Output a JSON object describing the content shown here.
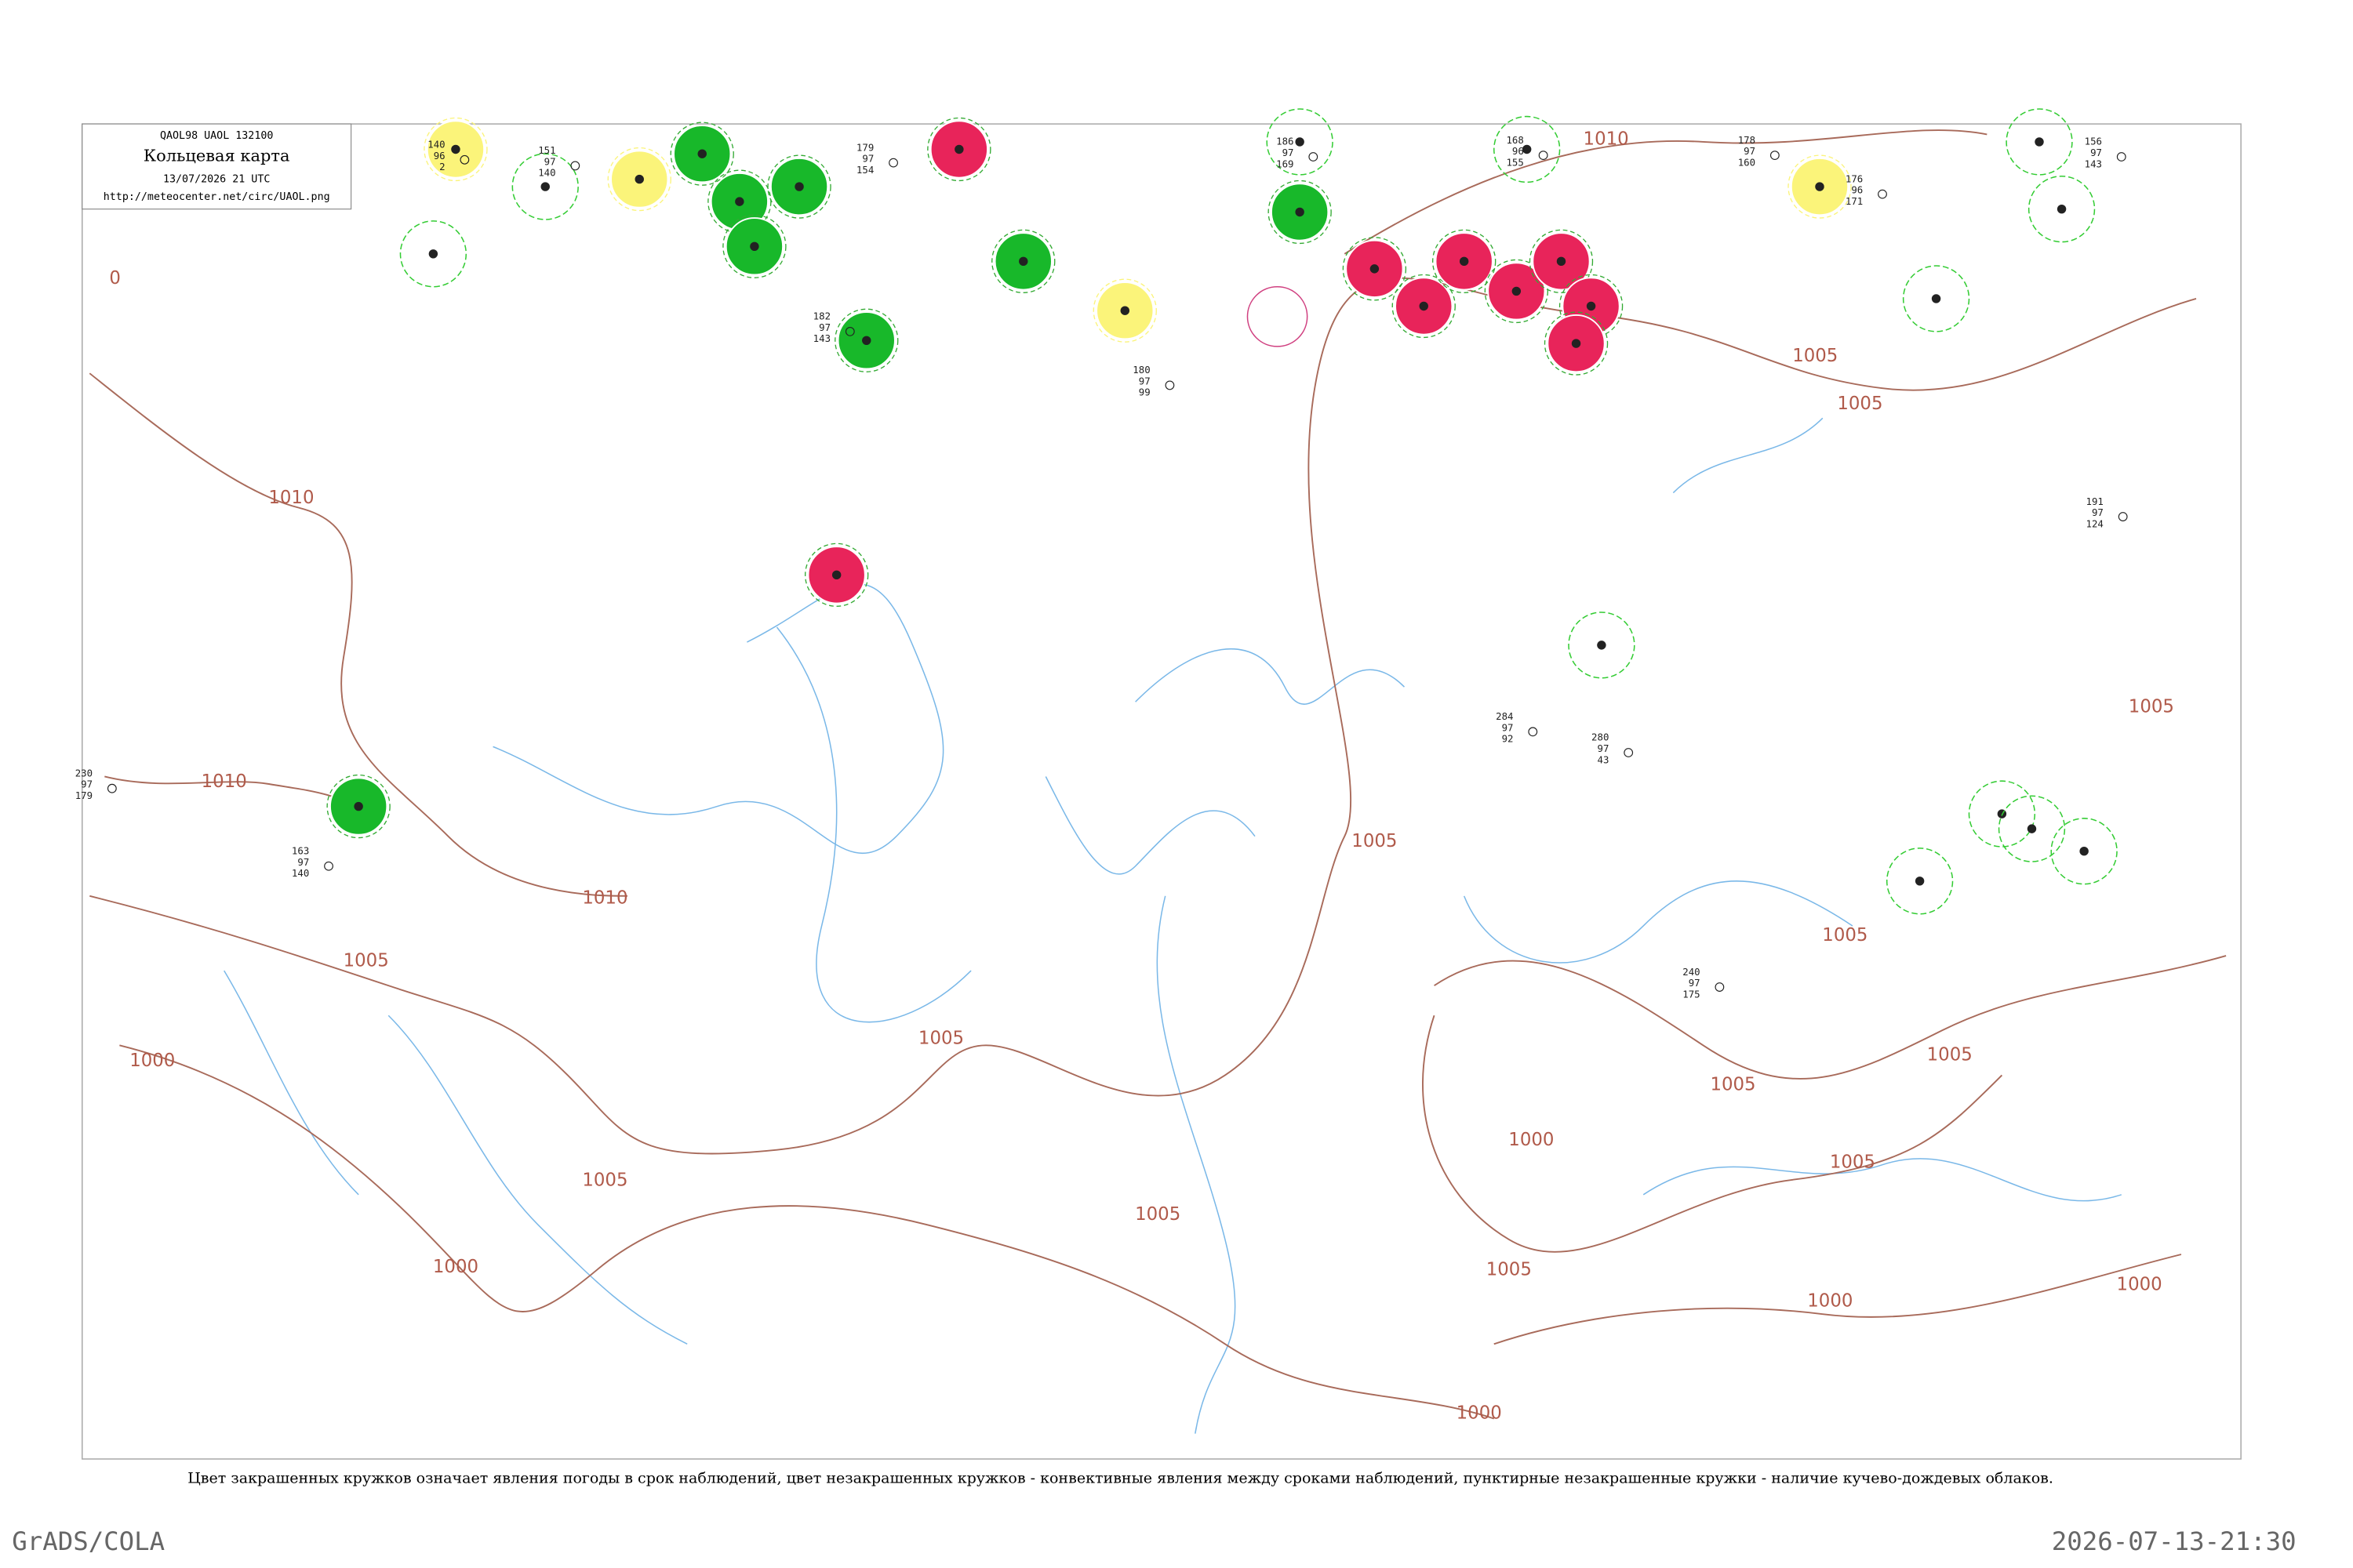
{
  "header": {
    "code": "QAOL98  UAOL  132100",
    "title": "Кольцевая карта",
    "time": "13/07/2026 21 UTC",
    "url": "http://meteocenter.net/circ/UAOL.png"
  },
  "isobar_labels": [
    "1010",
    "1010",
    "1010",
    "1010",
    "1005",
    "1005",
    "1005",
    "1005",
    "1005",
    "1005",
    "1005",
    "1005",
    "1005",
    "1005",
    "1005",
    "1005",
    "1005",
    "1000",
    "1000",
    "1000",
    "1000",
    "1000",
    "1000",
    "0"
  ],
  "stations": [
    [
      "151",
      "97",
      "140"
    ],
    [
      "179",
      "97",
      "154"
    ],
    [
      "178",
      "97",
      "160"
    ],
    [
      "168",
      "96",
      "155"
    ],
    [
      "140",
      "96",
      "2"
    ],
    [
      "182",
      "97",
      "143"
    ],
    [
      "156",
      "97",
      "143"
    ],
    [
      "176",
      "96",
      "171"
    ],
    [
      "186",
      "97",
      "169"
    ],
    [
      "284",
      "97",
      "92"
    ],
    [
      "280",
      "97",
      "43"
    ],
    [
      "191",
      "97",
      "124"
    ],
    [
      "240",
      "97",
      "175"
    ],
    [
      "180",
      "97",
      "99"
    ],
    [
      "163",
      "97",
      "140"
    ],
    [
      "230",
      "97",
      "179"
    ]
  ],
  "caption": "Цвет закрашенных кружков означает явления погоды в срок наблюдений, цвет незакрашенных кружков - конвективные явления между сроками наблюдений, пунктирные незакрашенные кружки - наличие кучево-дождевых облаков.",
  "footer": {
    "left": "GrADS/COLA",
    "right": "2026-07-13-21:30"
  }
}
